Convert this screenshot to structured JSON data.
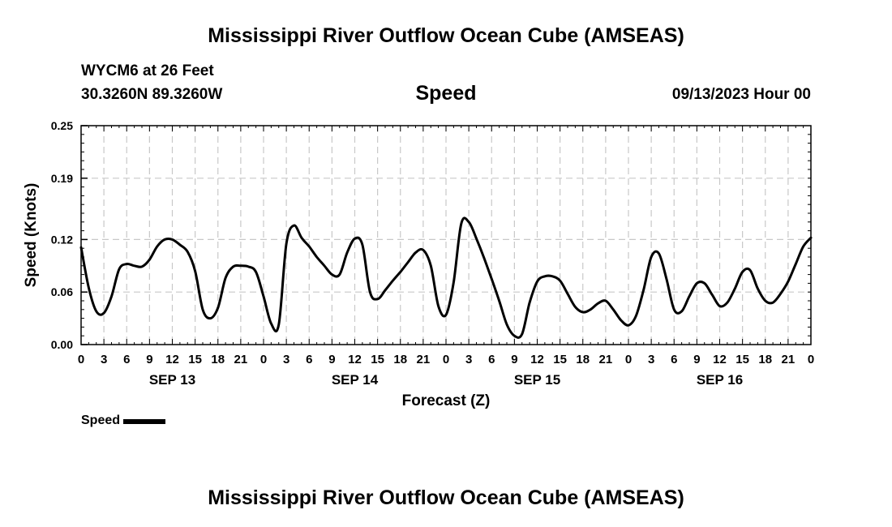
{
  "header": {
    "title": "Mississippi River Outflow Ocean Cube (AMSEAS)",
    "station": "WYCM6 at 26 Feet",
    "coords": "30.3260N  89.3260W",
    "subtitle": "Speed",
    "datetime": "09/13/2023 Hour 00"
  },
  "footer": {
    "title": "Mississippi River Outflow Ocean Cube (AMSEAS)"
  },
  "legend": {
    "label": "Speed",
    "color": "#000000"
  },
  "chart_data": {
    "type": "line",
    "title": "Speed",
    "xlabel": "Forecast (Z)",
    "ylabel": "Speed (Knots)",
    "xlim": [
      0,
      96
    ],
    "ylim": [
      0,
      0.25
    ],
    "yticks": [
      0,
      0.06,
      0.12,
      0.19,
      0.25
    ],
    "ytick_labels": [
      "0.00",
      "0.06",
      "0.12",
      "0.19",
      "0.25"
    ],
    "xtick_labels": [
      "0",
      "3",
      "6",
      "9",
      "12",
      "15",
      "18",
      "21",
      "0",
      "3",
      "6",
      "9",
      "12",
      "15",
      "18",
      "21",
      "0",
      "3",
      "6",
      "9",
      "12",
      "15",
      "18",
      "21",
      "0",
      "3",
      "6",
      "9",
      "12",
      "15",
      "18",
      "21",
      "0"
    ],
    "day_labels": [
      {
        "label": "SEP 13",
        "hour": 12
      },
      {
        "label": "SEP 14",
        "hour": 36
      },
      {
        "label": "SEP 15",
        "hour": 60
      },
      {
        "label": "SEP 16",
        "hour": 84
      }
    ],
    "grid": true,
    "series": [
      {
        "name": "Speed",
        "color": "#000000",
        "x": [
          0,
          1,
          2,
          3,
          4,
          5,
          6,
          7,
          8,
          9,
          10,
          11,
          12,
          13,
          14,
          15,
          16,
          17,
          18,
          19,
          20,
          21,
          22,
          23,
          24,
          25,
          26,
          27,
          28,
          29,
          30,
          31,
          32,
          33,
          34,
          35,
          36,
          37,
          38,
          39,
          40,
          41,
          42,
          43,
          44,
          45,
          46,
          47,
          48,
          49,
          50,
          51,
          52,
          53,
          54,
          55,
          56,
          57,
          58,
          59,
          60,
          61,
          62,
          63,
          64,
          65,
          66,
          67,
          68,
          69,
          70,
          71,
          72,
          73,
          74,
          75,
          76,
          77,
          78,
          79,
          80,
          81,
          82,
          83,
          84,
          85,
          86,
          87,
          88,
          89,
          90,
          91,
          92,
          93,
          94,
          95,
          96
        ],
        "values": [
          0.111,
          0.065,
          0.038,
          0.036,
          0.055,
          0.086,
          0.092,
          0.09,
          0.089,
          0.097,
          0.112,
          0.12,
          0.12,
          0.114,
          0.106,
          0.084,
          0.04,
          0.03,
          0.042,
          0.076,
          0.089,
          0.09,
          0.089,
          0.083,
          0.055,
          0.024,
          0.023,
          0.115,
          0.136,
          0.122,
          0.112,
          0.1,
          0.09,
          0.08,
          0.08,
          0.105,
          0.121,
          0.114,
          0.06,
          0.052,
          0.062,
          0.073,
          0.083,
          0.094,
          0.105,
          0.108,
          0.09,
          0.044,
          0.034,
          0.071,
          0.138,
          0.14,
          0.121,
          0.099,
          0.075,
          0.05,
          0.023,
          0.01,
          0.012,
          0.048,
          0.072,
          0.078,
          0.078,
          0.073,
          0.058,
          0.043,
          0.037,
          0.04,
          0.047,
          0.05,
          0.04,
          0.028,
          0.022,
          0.033,
          0.063,
          0.1,
          0.104,
          0.075,
          0.04,
          0.038,
          0.055,
          0.07,
          0.07,
          0.057,
          0.044,
          0.048,
          0.064,
          0.083,
          0.085,
          0.064,
          0.05,
          0.048,
          0.058,
          0.072,
          0.092,
          0.112,
          0.122
        ]
      }
    ]
  }
}
